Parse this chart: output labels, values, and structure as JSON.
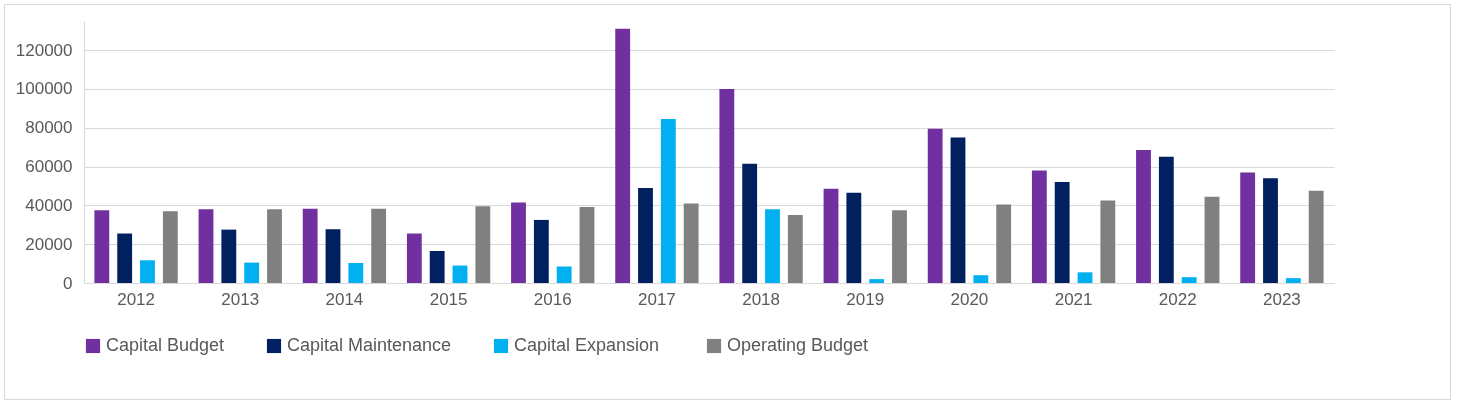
{
  "chart_data": {
    "type": "bar",
    "categories": [
      "2012",
      "2013",
      "2014",
      "2015",
      "2016",
      "2017",
      "2018",
      "2019",
      "2020",
      "2021",
      "2022",
      "2023"
    ],
    "series": [
      {
        "name": "Capital Budget",
        "color": "#7030a0",
        "values": [
          37500,
          38000,
          38200,
          25500,
          41500,
          131000,
          100000,
          48500,
          79500,
          58000,
          68500,
          57000
        ]
      },
      {
        "name": "Capital Maintenance",
        "color": "#002060",
        "values": [
          25500,
          27500,
          27700,
          16500,
          32500,
          49000,
          61500,
          46500,
          75000,
          52000,
          65000,
          54000
        ]
      },
      {
        "name": "Capital  Expansion",
        "color": "#00b0f0",
        "values": [
          11700,
          10500,
          10300,
          9000,
          8500,
          84500,
          38000,
          2000,
          4000,
          5500,
          3000,
          2500
        ]
      },
      {
        "name": "Operating Budget",
        "color": "#808080",
        "values": [
          37000,
          38000,
          38200,
          39500,
          39200,
          41000,
          35000,
          37500,
          40500,
          42500,
          44500,
          47500
        ]
      }
    ],
    "ylim": [
      0,
      135000
    ],
    "yticks": [
      0,
      20000,
      40000,
      60000,
      80000,
      100000,
      120000
    ],
    "grid": "y",
    "legend": "bottom"
  }
}
